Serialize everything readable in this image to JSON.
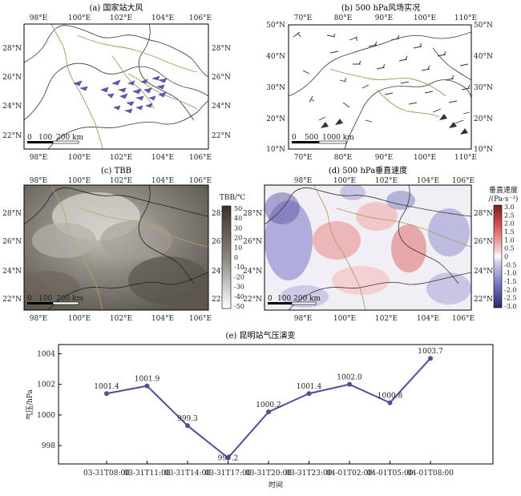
{
  "panels": {
    "a": {
      "title": "(a) 国家站大风",
      "lon_ticks": [
        "98°E",
        "100°E",
        "102°E",
        "104°E",
        "106°E"
      ],
      "lat_ticks": [
        "28°N",
        "26°N",
        "24°N",
        "22°N"
      ],
      "scale": {
        "labels": [
          "0",
          "100",
          "200 km"
        ]
      }
    },
    "b": {
      "title": "(b) 500 hPa风场实况",
      "lon_ticks": [
        "70°E",
        "80°E",
        "90°E",
        "100°E",
        "110°E"
      ],
      "lat_ticks_left": [
        "50°N",
        "40°N",
        "30°N",
        "20°N",
        "10°N"
      ],
      "lat_ticks_right": [
        "50°N",
        "40°N",
        "30°N",
        "20°N",
        "10°N"
      ],
      "scale": {
        "labels": [
          "0",
          "500",
          "1000 km"
        ]
      }
    },
    "c": {
      "title": "(c) TBB",
      "lon_ticks": [
        "98°E",
        "100°E",
        "102°E",
        "104°E",
        "106°E"
      ],
      "lat_ticks": [
        "28°N",
        "26°N",
        "24°N",
        "22°N"
      ],
      "scale": {
        "labels": [
          "0",
          "100",
          "200 km"
        ]
      },
      "colorbar": {
        "label": "TBB/℃",
        "ticks": [
          "50",
          "40",
          "30",
          "20",
          "10",
          "0",
          "-10",
          "-20",
          "-30",
          "-40",
          "-50"
        ]
      }
    },
    "d": {
      "title": "(d) 500 hPa垂直速度",
      "lon_ticks": [
        "98°E",
        "100°E",
        "102°E",
        "104°E",
        "106°E"
      ],
      "lat_ticks": [
        "28°N",
        "26°N",
        "24°N",
        "22°N"
      ],
      "scale": {
        "labels": [
          "0",
          "100",
          "200 km"
        ]
      },
      "colorbar": {
        "label_line1": "垂直速度",
        "label_line2": "/(Pa·s⁻¹)",
        "ticks": [
          "3.0",
          "2.5",
          "2.0",
          "1.5",
          "1.0",
          "0.5",
          "0",
          "-0.5",
          "-1.0",
          "-1.5",
          "-2.0",
          "-2.5",
          "-3.0"
        ]
      }
    }
  },
  "chart_data": {
    "type": "line",
    "title": "(e) 昆明站气压演变",
    "xlabel": "时间",
    "ylabel": "气压/hPa",
    "categories": [
      "03-31T08:00",
      "03-31T11:00",
      "03-31T14:00",
      "03-31T17:00",
      "03-31T20:00",
      "03-31T23:00",
      "04-01T02:00",
      "04-01T05:00",
      "04-01T08:00"
    ],
    "values": [
      1001.4,
      1001.9,
      999.3,
      997.2,
      1000.2,
      1001.4,
      1002.0,
      1000.8,
      1003.7
    ],
    "data_labels": [
      "1001.4",
      "1001.9",
      "999.3",
      "997.2",
      "1000.2",
      "1001.4",
      "1002.0",
      "1000.8",
      "1003.7"
    ],
    "yticks": [
      "998",
      "1000",
      "1002",
      "1004"
    ],
    "ylim": [
      996.8,
      1004.6
    ],
    "line_color": "#4d4f98",
    "grid": false
  }
}
